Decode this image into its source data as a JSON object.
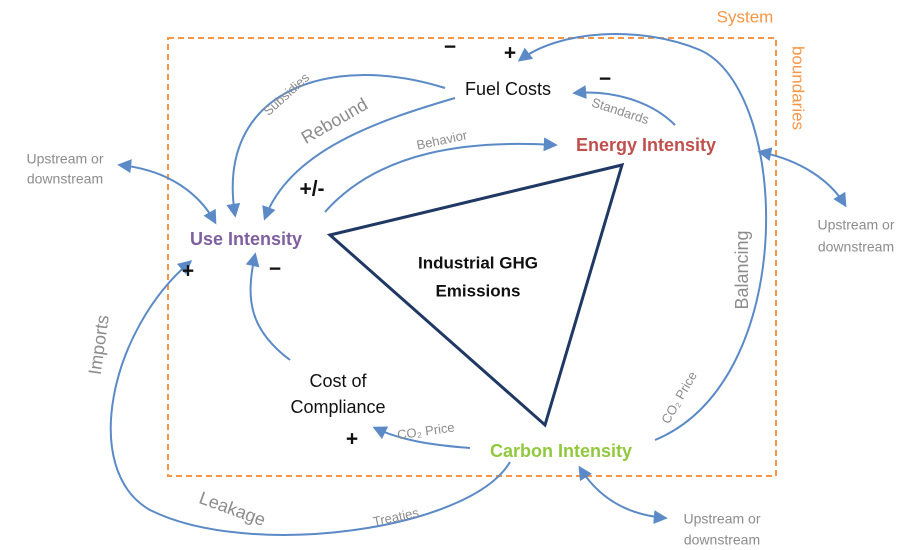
{
  "boundary": {
    "title": "System",
    "subtitle": "boundaries"
  },
  "center": {
    "lines": [
      "Industrial GHG",
      "Emissions"
    ]
  },
  "nodes": [
    {
      "lines": [
        "Fuel Costs"
      ]
    },
    {
      "lines": [
        "Energy Intensity"
      ]
    },
    {
      "lines": [
        "Use Intensity"
      ]
    },
    {
      "lines": [
        "Carbon Intensity"
      ]
    },
    {
      "lines": [
        "Cost of",
        "Compliance"
      ]
    }
  ],
  "edge_labels": [
    "Subsidies",
    "Rebound",
    "Behavior",
    "Standards",
    "Balancing",
    "CO₂ Price",
    "CO₂ Price",
    "Imports",
    "Leakage",
    "Treaties"
  ],
  "signs": [
    "−",
    "+",
    "−",
    "+/-",
    "+",
    "−",
    "+"
  ],
  "external": [
    {
      "lines": [
        "Upstream or",
        "downstream"
      ]
    },
    {
      "lines": [
        "Upstream or",
        "downstream"
      ]
    },
    {
      "lines": [
        "Upstream or",
        "downstream"
      ]
    }
  ]
}
